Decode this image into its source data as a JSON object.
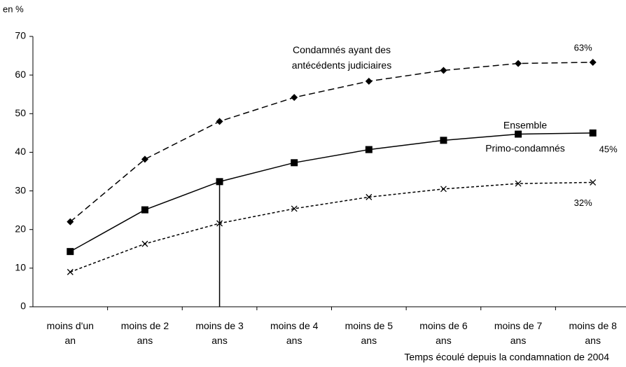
{
  "chart_data": {
    "type": "line",
    "y_label": "en %",
    "x_label": "Temps écoulé depuis la condamnation de 2004",
    "categories": [
      "moins d'un an",
      "moins de 2 ans",
      "moins de 3 ans",
      "moins de 4 ans",
      "moins de 5 ans",
      "moins de 6 ans",
      "moins de 7 ans",
      "moins de 8 ans"
    ],
    "series": [
      {
        "name": "Condamnés ayant des antécédents judiciaires",
        "color": "#000000",
        "dash": "long",
        "marker": "diamond",
        "values": [
          22,
          38.2,
          48,
          54.2,
          58.4,
          61.2,
          63,
          63.3
        ],
        "value_labels": [
          null,
          null,
          null,
          null,
          null,
          null,
          null,
          "63%"
        ]
      },
      {
        "name": "Ensemble",
        "color": "#000000",
        "dash": "solid",
        "marker": "square",
        "values": [
          14.3,
          25.1,
          32.4,
          37.3,
          40.7,
          43.1,
          44.7,
          45
        ],
        "value_labels": [
          null,
          null,
          null,
          null,
          null,
          null,
          null,
          "45%"
        ]
      },
      {
        "name": "Primo-condamnés",
        "color": "#000000",
        "dash": "short",
        "marker": "cross",
        "values": [
          9,
          16.3,
          21.6,
          25.4,
          28.4,
          30.5,
          31.9,
          32.2
        ],
        "value_labels": [
          null,
          null,
          null,
          null,
          null,
          null,
          null,
          "32%"
        ]
      }
    ],
    "ylim": [
      0,
      70
    ],
    "yticks": [
      0,
      10,
      20,
      30,
      40,
      50,
      60,
      70
    ],
    "grid": false
  }
}
